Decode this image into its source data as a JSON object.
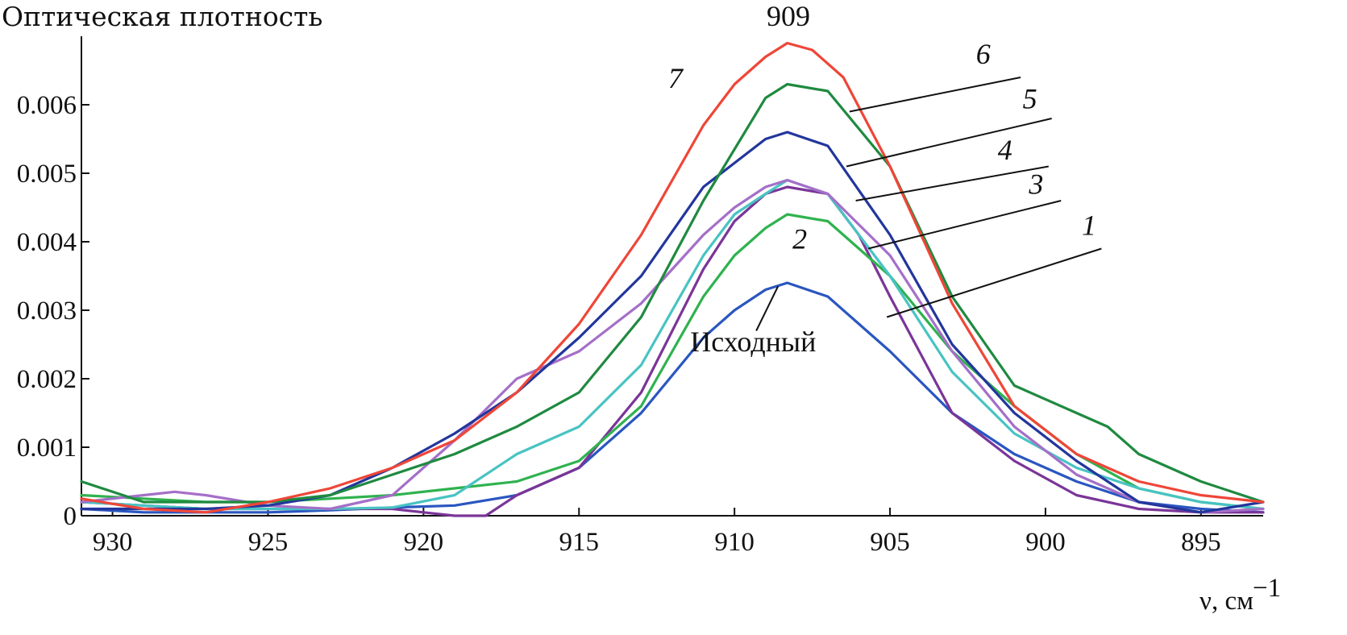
{
  "chart_data": {
    "type": "line",
    "title": "",
    "ylabel": "Оптическая плотность",
    "xlabel_symbol": "ν, см",
    "xlabel_sup": "−1",
    "peak_label": "909",
    "xlim": [
      931,
      893
    ],
    "ylim": [
      0,
      0.007
    ],
    "xticks": [
      930,
      925,
      920,
      915,
      910,
      905,
      900,
      895
    ],
    "xtick_labels": [
      "930",
      "925",
      "920",
      "915",
      "910",
      "905",
      "900",
      "895"
    ],
    "yticks": [
      0,
      0.001,
      0.002,
      0.003,
      0.004,
      0.005,
      0.006
    ],
    "ytick_labels": [
      "0",
      "0.001",
      "0.002",
      "0.003",
      "0.004",
      "0.005",
      "0.006"
    ],
    "grid": false,
    "series": [
      {
        "name": "Исходный",
        "color": "#2a56c0",
        "x": [
          931,
          929,
          927,
          925,
          923,
          921,
          919,
          917,
          915,
          913,
          911,
          910,
          909,
          908.3,
          907,
          905,
          903,
          901,
          899,
          897,
          895,
          893
        ],
        "y": [
          0.0001,
          5e-05,
          5e-05,
          5e-05,
          8e-05,
          0.00012,
          0.00015,
          0.0003,
          0.0007,
          0.0015,
          0.0026,
          0.003,
          0.0033,
          0.0034,
          0.0032,
          0.0024,
          0.0015,
          0.0009,
          0.0005,
          0.0002,
          0.0001,
          5e-05
        ]
      },
      {
        "name": "1",
        "color": "#7a3598",
        "x": [
          931,
          929,
          927,
          925,
          923,
          922,
          921,
          920,
          919,
          918,
          917,
          915,
          913,
          911,
          910,
          909,
          908.3,
          907,
          906,
          905,
          903,
          901,
          899,
          897,
          895,
          893
        ],
        "y": [
          0.0002,
          0.00015,
          0.0001,
          0.0001,
          0.0001,
          0.0001,
          0.0001,
          5e-05,
          0,
          0,
          0.0003,
          0.0007,
          0.0018,
          0.0036,
          0.0043,
          0.0047,
          0.0048,
          0.0047,
          0.0041,
          0.0032,
          0.0015,
          0.0008,
          0.0003,
          0.0001,
          5e-05,
          5e-05
        ]
      },
      {
        "name": "2",
        "color": "#2fb24f",
        "x": [
          931,
          929,
          927,
          925,
          923,
          921,
          919,
          917,
          915,
          913,
          911,
          910,
          909,
          908.3,
          907,
          905,
          903,
          901,
          899,
          897,
          895,
          893
        ],
        "y": [
          0.0003,
          0.00025,
          0.0002,
          0.0002,
          0.00025,
          0.0003,
          0.0004,
          0.0005,
          0.0008,
          0.0016,
          0.0032,
          0.0038,
          0.0042,
          0.0044,
          0.0043,
          0.0035,
          0.0024,
          0.0016,
          0.0009,
          0.0004,
          0.0002,
          0.0001
        ]
      },
      {
        "name": "3",
        "color": "#49c3c3",
        "x": [
          931,
          929,
          927,
          925,
          923,
          921,
          919,
          917,
          915,
          913,
          911,
          910,
          909,
          908.3,
          907,
          905,
          903,
          901,
          899,
          897,
          895,
          893
        ],
        "y": [
          0.0002,
          0.00015,
          0.0001,
          0.0001,
          0.0001,
          0.00012,
          0.0003,
          0.0009,
          0.0013,
          0.0022,
          0.0038,
          0.0044,
          0.0047,
          0.0049,
          0.0047,
          0.0035,
          0.0021,
          0.0012,
          0.0007,
          0.0004,
          0.0002,
          0.0001
        ]
      },
      {
        "name": "4",
        "color": "#a56fc8",
        "x": [
          931,
          929,
          928,
          927,
          925,
          923,
          921,
          919,
          917,
          915,
          913,
          911,
          910,
          909,
          908.3,
          907,
          905,
          903,
          901,
          899,
          897,
          895,
          893
        ],
        "y": [
          0.0002,
          0.0003,
          0.00035,
          0.0003,
          0.00015,
          0.0001,
          0.0003,
          0.0011,
          0.002,
          0.0024,
          0.0031,
          0.0041,
          0.0045,
          0.0048,
          0.0049,
          0.0047,
          0.0038,
          0.0024,
          0.0013,
          0.0006,
          0.0002,
          5e-05,
          0.0001
        ]
      },
      {
        "name": "5",
        "color": "#23369c",
        "x": [
          931,
          929,
          927,
          925,
          923,
          921,
          919,
          917,
          915,
          913,
          911,
          909,
          908.3,
          907,
          905,
          903,
          901,
          899,
          897,
          895,
          893
        ],
        "y": [
          0.0001,
          0.0001,
          0.0001,
          0.00015,
          0.0003,
          0.0007,
          0.0012,
          0.0018,
          0.0026,
          0.0035,
          0.0048,
          0.0055,
          0.0056,
          0.0054,
          0.0041,
          0.0025,
          0.0015,
          0.0008,
          0.0002,
          5e-05,
          0.0002
        ]
      },
      {
        "name": "6",
        "color": "#1f8a40",
        "x": [
          931,
          929,
          927,
          925,
          923,
          921,
          919,
          917,
          915,
          913,
          911,
          909,
          908.3,
          907,
          905,
          903,
          901,
          899,
          898,
          897,
          895,
          893
        ],
        "y": [
          0.0005,
          0.0002,
          0.0002,
          0.0002,
          0.0003,
          0.0006,
          0.0009,
          0.0013,
          0.0018,
          0.0029,
          0.0046,
          0.0061,
          0.0063,
          0.0062,
          0.0051,
          0.0032,
          0.0019,
          0.0015,
          0.0013,
          0.0009,
          0.0005,
          0.0002
        ]
      },
      {
        "name": "7",
        "color": "#ef4638",
        "x": [
          931,
          929,
          927,
          925,
          923,
          921,
          919,
          917,
          915,
          913,
          911,
          910,
          909,
          908.3,
          907.5,
          906.5,
          905,
          903,
          901,
          899,
          897,
          895,
          893
        ],
        "y": [
          0.00025,
          0.0001,
          5e-05,
          0.0002,
          0.0004,
          0.0007,
          0.0011,
          0.0018,
          0.0028,
          0.0041,
          0.0057,
          0.0063,
          0.0067,
          0.0069,
          0.0068,
          0.0064,
          0.0051,
          0.0031,
          0.0016,
          0.0009,
          0.0005,
          0.0003,
          0.0002
        ]
      }
    ],
    "annotations": [
      {
        "text": "7",
        "style": "italic",
        "x": 911.9,
        "y": 0.00625
      },
      {
        "text": "6",
        "style": "italic",
        "x": 902.0,
        "y": 0.0066
      },
      {
        "text": "5",
        "style": "italic",
        "x": 900.5,
        "y": 0.00595
      },
      {
        "text": "4",
        "style": "italic",
        "x": 901.3,
        "y": 0.0052
      },
      {
        "text": "3",
        "style": "italic",
        "x": 900.3,
        "y": 0.0047
      },
      {
        "text": "1",
        "style": "italic",
        "x": 898.6,
        "y": 0.0041
      },
      {
        "text": "2",
        "style": "italic",
        "x": 907.9,
        "y": 0.0039
      },
      {
        "text": "Исходный",
        "style": "normal",
        "x": 909.4,
        "y": 0.0024
      }
    ],
    "leaders": [
      {
        "from": [
          906.3,
          0.0059
        ],
        "to": [
          900.8,
          0.0064
        ]
      },
      {
        "from": [
          906.4,
          0.0051
        ],
        "to": [
          899.8,
          0.0058
        ]
      },
      {
        "from": [
          906.1,
          0.0046
        ],
        "to": [
          899.9,
          0.0051
        ]
      },
      {
        "from": [
          905.7,
          0.0039
        ],
        "to": [
          899.5,
          0.0046
        ]
      },
      {
        "from": [
          905.1,
          0.0029
        ],
        "to": [
          898.2,
          0.0039
        ]
      },
      {
        "from": [
          908.6,
          0.00335
        ],
        "to": [
          909.3,
          0.0027
        ]
      }
    ]
  }
}
